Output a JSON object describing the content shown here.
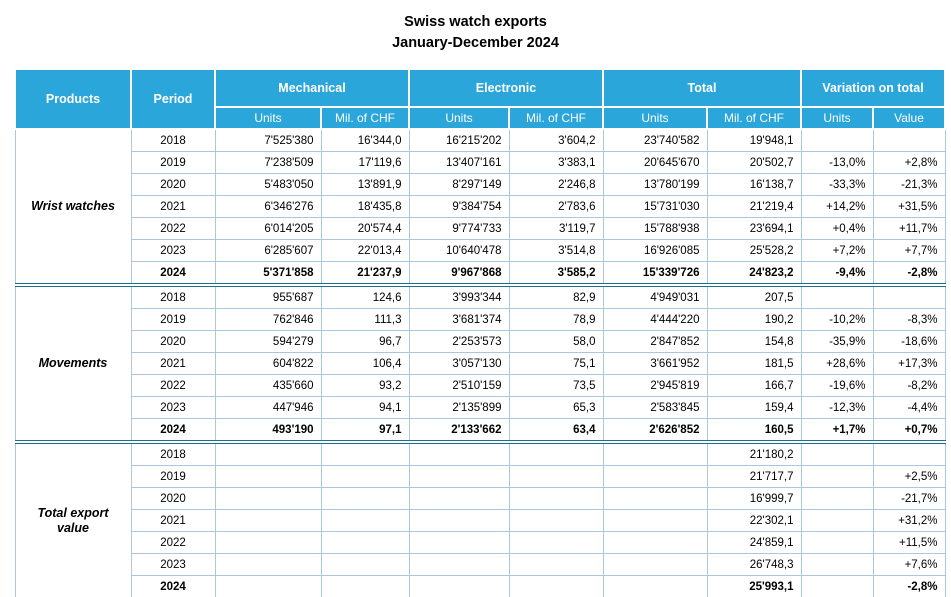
{
  "title": "Swiss watch exports",
  "subtitle": "January-December 2024",
  "colors": {
    "header_bg": "#2BA6DB",
    "separator": "#16718F",
    "grid": "#A9C7DE",
    "header_text": "#FFFFFF",
    "text": "#000000"
  },
  "table": {
    "headers": {
      "products": "Products",
      "period": "Period",
      "groups": [
        "Mechanical",
        "Electronic",
        "Total",
        "Variation on total"
      ],
      "sub": [
        "Units",
        "Mil. of CHF",
        "Units",
        "Mil. of CHF",
        "Units",
        "Mil. of CHF",
        "Units",
        "Value"
      ]
    },
    "sections": [
      {
        "label": "Wrist watches",
        "rows": [
          {
            "period": "2018",
            "bold": false,
            "cells": [
              "7'525'380",
              "16'344,0",
              "16'215'202",
              "3'604,2",
              "23'740'582",
              "19'948,1",
              "",
              ""
            ]
          },
          {
            "period": "2019",
            "bold": false,
            "cells": [
              "7'238'509",
              "17'119,6",
              "13'407'161",
              "3'383,1",
              "20'645'670",
              "20'502,7",
              "-13,0%",
              "+2,8%"
            ]
          },
          {
            "period": "2020",
            "bold": false,
            "cells": [
              "5'483'050",
              "13'891,9",
              "8'297'149",
              "2'246,8",
              "13'780'199",
              "16'138,7",
              "-33,3%",
              "-21,3%"
            ]
          },
          {
            "period": "2021",
            "bold": false,
            "cells": [
              "6'346'276",
              "18'435,8",
              "9'384'754",
              "2'783,6",
              "15'731'030",
              "21'219,4",
              "+14,2%",
              "+31,5%"
            ]
          },
          {
            "period": "2022",
            "bold": false,
            "cells": [
              "6'014'205",
              "20'574,4",
              "9'774'733",
              "3'119,7",
              "15'788'938",
              "23'694,1",
              "+0,4%",
              "+11,7%"
            ]
          },
          {
            "period": "2023",
            "bold": false,
            "cells": [
              "6'285'607",
              "22'013,4",
              "10'640'478",
              "3'514,8",
              "16'926'085",
              "25'528,2",
              "+7,2%",
              "+7,7%"
            ]
          },
          {
            "period": "2024",
            "bold": true,
            "cells": [
              "5'371'858",
              "21'237,9",
              "9'967'868",
              "3'585,2",
              "15'339'726",
              "24'823,2",
              "-9,4%",
              "-2,8%"
            ]
          }
        ]
      },
      {
        "label": "Movements",
        "rows": [
          {
            "period": "2018",
            "bold": false,
            "cells": [
              "955'687",
              "124,6",
              "3'993'344",
              "82,9",
              "4'949'031",
              "207,5",
              "",
              ""
            ]
          },
          {
            "period": "2019",
            "bold": false,
            "cells": [
              "762'846",
              "111,3",
              "3'681'374",
              "78,9",
              "4'444'220",
              "190,2",
              "-10,2%",
              "-8,3%"
            ]
          },
          {
            "period": "2020",
            "bold": false,
            "cells": [
              "594'279",
              "96,7",
              "2'253'573",
              "58,0",
              "2'847'852",
              "154,8",
              "-35,9%",
              "-18,6%"
            ]
          },
          {
            "period": "2021",
            "bold": false,
            "cells": [
              "604'822",
              "106,4",
              "3'057'130",
              "75,1",
              "3'661'952",
              "181,5",
              "+28,6%",
              "+17,3%"
            ]
          },
          {
            "period": "2022",
            "bold": false,
            "cells": [
              "435'660",
              "93,2",
              "2'510'159",
              "73,5",
              "2'945'819",
              "166,7",
              "-19,6%",
              "-8,2%"
            ]
          },
          {
            "period": "2023",
            "bold": false,
            "cells": [
              "447'946",
              "94,1",
              "2'135'899",
              "65,3",
              "2'583'845",
              "159,4",
              "-12,3%",
              "-4,4%"
            ]
          },
          {
            "period": "2024",
            "bold": true,
            "cells": [
              "493'190",
              "97,1",
              "2'133'662",
              "63,4",
              "2'626'852",
              "160,5",
              "+1,7%",
              "+0,7%"
            ]
          }
        ]
      },
      {
        "label": "Total export value",
        "rows": [
          {
            "period": "2018",
            "bold": false,
            "cells": [
              "",
              "",
              "",
              "",
              "",
              "21'180,2",
              "",
              ""
            ]
          },
          {
            "period": "2019",
            "bold": false,
            "cells": [
              "",
              "",
              "",
              "",
              "",
              "21'717,7",
              "",
              "+2,5%"
            ]
          },
          {
            "period": "2020",
            "bold": false,
            "cells": [
              "",
              "",
              "",
              "",
              "",
              "16'999,7",
              "",
              "-21,7%"
            ]
          },
          {
            "period": "2021",
            "bold": false,
            "cells": [
              "",
              "",
              "",
              "",
              "",
              "22'302,1",
              "",
              "+31,2%"
            ]
          },
          {
            "period": "2022",
            "bold": false,
            "cells": [
              "",
              "",
              "",
              "",
              "",
              "24'859,1",
              "",
              "+11,5%"
            ]
          },
          {
            "period": "2023",
            "bold": false,
            "cells": [
              "",
              "",
              "",
              "",
              "",
              "26'748,3",
              "",
              "+7,6%"
            ]
          },
          {
            "period": "2024",
            "bold": true,
            "cells": [
              "",
              "",
              "",
              "",
              "",
              "25'993,1",
              "",
              "-2,8%"
            ]
          }
        ]
      }
    ]
  }
}
